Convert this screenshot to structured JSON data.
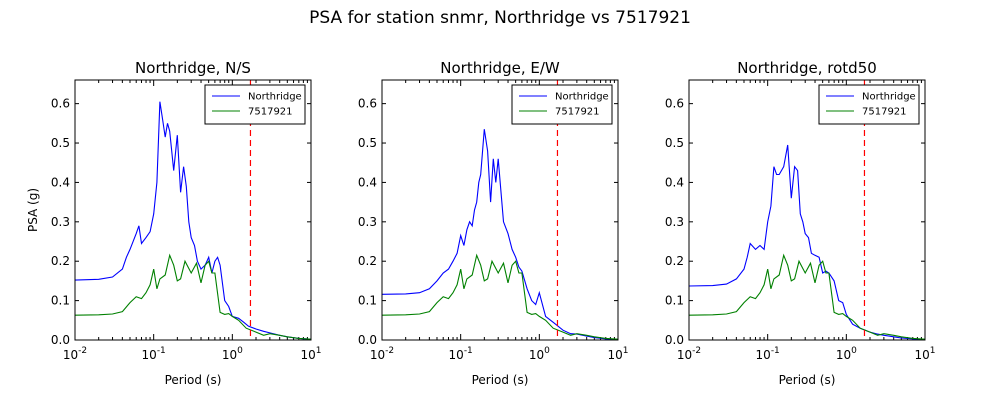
{
  "figure": {
    "title": "PSA for station snmr, Northridge vs 7517921"
  },
  "chart_data": [
    {
      "type": "line",
      "title": "Northridge, N/S",
      "xlabel": "Period (s)",
      "ylabel": "PSA (g)",
      "xscale": "log",
      "xlim": [
        0.01,
        10
      ],
      "ylim": [
        0,
        0.66
      ],
      "yticks": [
        "0.0",
        "0.1",
        "0.2",
        "0.3",
        "0.4",
        "0.5",
        "0.6"
      ],
      "xticks": [
        {
          "base": "10",
          "exp": "-2"
        },
        {
          "base": "10",
          "exp": "-1"
        },
        {
          "base": "10",
          "exp": "0"
        },
        {
          "base": "10",
          "exp": "1"
        }
      ],
      "legend": "top-right",
      "vline": {
        "x": 1.7,
        "color": "#ff0000",
        "style": "dashed"
      },
      "series": [
        {
          "name": "Northridge",
          "color": "#0000ff",
          "x": [
            0.01,
            0.02,
            0.03,
            0.04,
            0.045,
            0.05,
            0.06,
            0.065,
            0.07,
            0.08,
            0.09,
            0.1,
            0.11,
            0.12,
            0.13,
            0.14,
            0.15,
            0.16,
            0.18,
            0.2,
            0.22,
            0.24,
            0.26,
            0.28,
            0.3,
            0.33,
            0.36,
            0.4,
            0.45,
            0.5,
            0.55,
            0.6,
            0.65,
            0.7,
            0.8,
            0.9,
            1.0,
            1.2,
            1.4,
            1.6,
            2.0,
            2.5,
            3.0,
            4.0,
            5.0,
            7.0,
            10.0
          ],
          "y": [
            0.152,
            0.154,
            0.16,
            0.18,
            0.21,
            0.23,
            0.27,
            0.29,
            0.245,
            0.26,
            0.275,
            0.32,
            0.4,
            0.605,
            0.56,
            0.515,
            0.55,
            0.53,
            0.43,
            0.52,
            0.375,
            0.44,
            0.39,
            0.3,
            0.26,
            0.24,
            0.2,
            0.18,
            0.19,
            0.21,
            0.17,
            0.2,
            0.21,
            0.19,
            0.1,
            0.085,
            0.06,
            0.055,
            0.045,
            0.035,
            0.028,
            0.022,
            0.018,
            0.012,
            0.008,
            0.004,
            0.002
          ]
        },
        {
          "name": "7517921",
          "color": "#008000",
          "x": [
            0.01,
            0.02,
            0.03,
            0.04,
            0.05,
            0.06,
            0.07,
            0.08,
            0.09,
            0.1,
            0.11,
            0.12,
            0.14,
            0.16,
            0.18,
            0.2,
            0.22,
            0.25,
            0.3,
            0.35,
            0.4,
            0.45,
            0.5,
            0.55,
            0.6,
            0.7,
            0.8,
            0.9,
            1.0,
            1.2,
            1.5,
            2.0,
            2.5,
            3.0,
            4.0,
            5.0,
            7.0,
            10.0
          ],
          "y": [
            0.063,
            0.064,
            0.066,
            0.072,
            0.095,
            0.11,
            0.105,
            0.12,
            0.14,
            0.18,
            0.13,
            0.155,
            0.165,
            0.215,
            0.19,
            0.15,
            0.155,
            0.2,
            0.17,
            0.195,
            0.145,
            0.19,
            0.2,
            0.17,
            0.17,
            0.07,
            0.065,
            0.067,
            0.06,
            0.05,
            0.03,
            0.02,
            0.012,
            0.016,
            0.012,
            0.008,
            0.004,
            0.002
          ]
        }
      ]
    },
    {
      "type": "line",
      "title": "Northridge, E/W",
      "xlabel": "Period (s)",
      "ylabel": "",
      "xscale": "log",
      "xlim": [
        0.01,
        10
      ],
      "ylim": [
        0,
        0.66
      ],
      "yticks": [
        "0.0",
        "0.1",
        "0.2",
        "0.3",
        "0.4",
        "0.5",
        "0.6"
      ],
      "xticks": [
        {
          "base": "10",
          "exp": "-2"
        },
        {
          "base": "10",
          "exp": "-1"
        },
        {
          "base": "10",
          "exp": "0"
        },
        {
          "base": "10",
          "exp": "1"
        }
      ],
      "legend": "top-right",
      "vline": {
        "x": 1.7,
        "color": "#ff0000",
        "style": "dashed"
      },
      "series": [
        {
          "name": "Northridge",
          "color": "#0000ff",
          "x": [
            0.01,
            0.02,
            0.03,
            0.04,
            0.05,
            0.06,
            0.07,
            0.08,
            0.09,
            0.1,
            0.11,
            0.12,
            0.13,
            0.14,
            0.15,
            0.16,
            0.17,
            0.18,
            0.2,
            0.22,
            0.24,
            0.26,
            0.28,
            0.3,
            0.35,
            0.4,
            0.45,
            0.5,
            0.55,
            0.6,
            0.7,
            0.8,
            0.9,
            1.0,
            1.2,
            1.5,
            2.0,
            2.5,
            3.0,
            4.0,
            5.0,
            7.0,
            10.0
          ],
          "y": [
            0.116,
            0.117,
            0.12,
            0.13,
            0.15,
            0.17,
            0.18,
            0.2,
            0.22,
            0.265,
            0.24,
            0.28,
            0.3,
            0.29,
            0.33,
            0.35,
            0.4,
            0.42,
            0.535,
            0.48,
            0.35,
            0.46,
            0.4,
            0.46,
            0.3,
            0.27,
            0.23,
            0.21,
            0.185,
            0.175,
            0.13,
            0.1,
            0.09,
            0.12,
            0.06,
            0.045,
            0.025,
            0.016,
            0.015,
            0.01,
            0.006,
            0.003,
            0.001
          ]
        },
        {
          "name": "7517921",
          "color": "#008000",
          "x": [
            0.01,
            0.02,
            0.03,
            0.04,
            0.05,
            0.06,
            0.07,
            0.08,
            0.09,
            0.1,
            0.11,
            0.12,
            0.14,
            0.16,
            0.18,
            0.2,
            0.22,
            0.25,
            0.3,
            0.35,
            0.4,
            0.45,
            0.5,
            0.55,
            0.6,
            0.7,
            0.8,
            0.9,
            1.0,
            1.2,
            1.5,
            2.0,
            2.5,
            3.0,
            4.0,
            5.0,
            7.0,
            10.0
          ],
          "y": [
            0.063,
            0.064,
            0.066,
            0.072,
            0.095,
            0.11,
            0.105,
            0.12,
            0.14,
            0.18,
            0.13,
            0.155,
            0.165,
            0.215,
            0.19,
            0.15,
            0.155,
            0.2,
            0.17,
            0.195,
            0.145,
            0.19,
            0.2,
            0.17,
            0.17,
            0.07,
            0.065,
            0.067,
            0.06,
            0.05,
            0.03,
            0.02,
            0.012,
            0.016,
            0.012,
            0.008,
            0.004,
            0.002
          ]
        }
      ]
    },
    {
      "type": "line",
      "title": "Northridge, rotd50",
      "xlabel": "Period (s)",
      "ylabel": "",
      "xscale": "log",
      "xlim": [
        0.01,
        10
      ],
      "ylim": [
        0,
        0.66
      ],
      "yticks": [
        "0.0",
        "0.1",
        "0.2",
        "0.3",
        "0.4",
        "0.5",
        "0.6"
      ],
      "xticks": [
        {
          "base": "10",
          "exp": "-2"
        },
        {
          "base": "10",
          "exp": "-1"
        },
        {
          "base": "10",
          "exp": "0"
        },
        {
          "base": "10",
          "exp": "1"
        }
      ],
      "legend": "top-right",
      "vline": {
        "x": 1.7,
        "color": "#ff0000",
        "style": "dashed"
      },
      "series": [
        {
          "name": "Northridge",
          "color": "#0000ff",
          "x": [
            0.01,
            0.02,
            0.03,
            0.04,
            0.05,
            0.055,
            0.06,
            0.07,
            0.08,
            0.09,
            0.1,
            0.11,
            0.12,
            0.13,
            0.14,
            0.16,
            0.18,
            0.2,
            0.22,
            0.24,
            0.26,
            0.28,
            0.3,
            0.33,
            0.36,
            0.4,
            0.45,
            0.5,
            0.55,
            0.6,
            0.7,
            0.8,
            0.9,
            1.0,
            1.2,
            1.5,
            2.0,
            2.5,
            3.0,
            4.0,
            5.0,
            7.0,
            10.0
          ],
          "y": [
            0.137,
            0.138,
            0.142,
            0.155,
            0.18,
            0.21,
            0.245,
            0.23,
            0.24,
            0.23,
            0.3,
            0.34,
            0.44,
            0.42,
            0.42,
            0.44,
            0.495,
            0.36,
            0.44,
            0.43,
            0.32,
            0.3,
            0.27,
            0.26,
            0.22,
            0.215,
            0.21,
            0.17,
            0.175,
            0.17,
            0.15,
            0.1,
            0.095,
            0.065,
            0.04,
            0.03,
            0.02,
            0.015,
            0.012,
            0.008,
            0.005,
            0.003,
            0.001
          ]
        },
        {
          "name": "7517921",
          "color": "#008000",
          "x": [
            0.01,
            0.02,
            0.03,
            0.04,
            0.05,
            0.06,
            0.07,
            0.08,
            0.09,
            0.1,
            0.11,
            0.12,
            0.14,
            0.16,
            0.18,
            0.2,
            0.22,
            0.25,
            0.3,
            0.35,
            0.4,
            0.45,
            0.5,
            0.55,
            0.6,
            0.7,
            0.8,
            0.9,
            1.0,
            1.2,
            1.5,
            2.0,
            2.5,
            3.0,
            4.0,
            5.0,
            7.0,
            10.0
          ],
          "y": [
            0.063,
            0.064,
            0.066,
            0.072,
            0.095,
            0.11,
            0.105,
            0.12,
            0.14,
            0.18,
            0.13,
            0.155,
            0.165,
            0.215,
            0.19,
            0.15,
            0.155,
            0.2,
            0.17,
            0.195,
            0.145,
            0.19,
            0.2,
            0.17,
            0.17,
            0.07,
            0.065,
            0.067,
            0.06,
            0.05,
            0.03,
            0.02,
            0.012,
            0.016,
            0.012,
            0.008,
            0.004,
            0.002
          ]
        }
      ]
    }
  ]
}
